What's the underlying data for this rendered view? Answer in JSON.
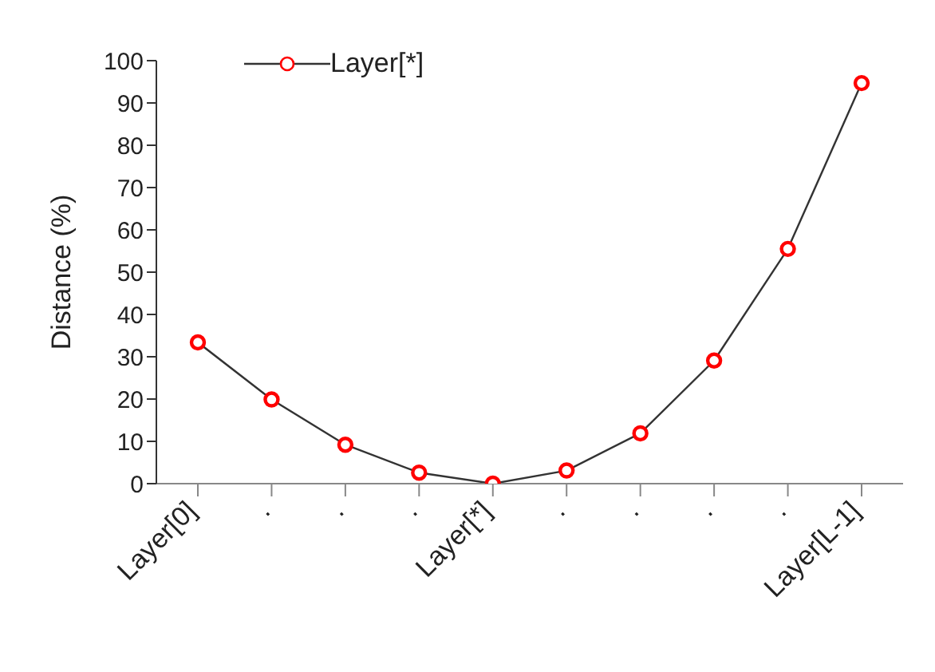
{
  "chart_data": {
    "type": "line",
    "ylabel": "Distance (%)",
    "categories": [
      "Layer[0]",
      ".",
      ".",
      ".",
      "Layer[*]",
      ".",
      ".",
      ".",
      ".",
      "Layer[L-1]"
    ],
    "series": [
      {
        "name": "Layer[*]",
        "color": "#ff0000",
        "values": [
          33.4,
          19.9,
          9.2,
          2.6,
          0,
          3.1,
          11.9,
          29.1,
          55.5,
          94.7
        ]
      }
    ],
    "ylim": [
      0,
      100
    ],
    "yticks": [
      0,
      10,
      20,
      30,
      40,
      50,
      60,
      70,
      80,
      90,
      100
    ],
    "grid": false,
    "legend": "top left",
    "marker": "circle",
    "line_style": "solid"
  }
}
